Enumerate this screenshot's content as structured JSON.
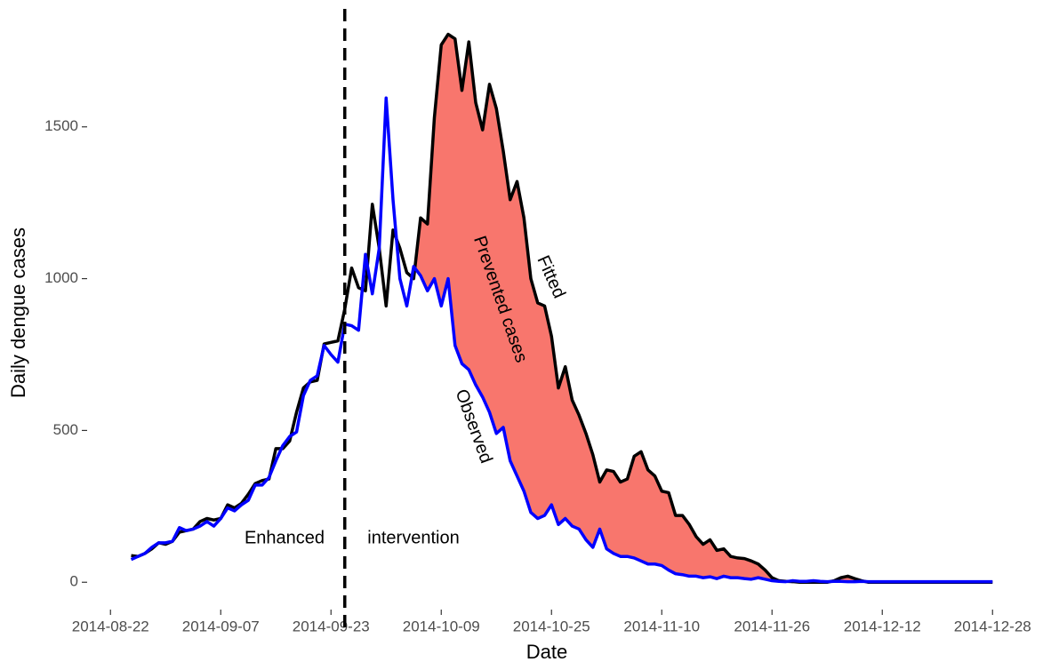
{
  "chart_data": {
    "type": "line",
    "x_label": "Date",
    "y_label": "Daily dengue cases",
    "x": [
      "2014-08-25",
      "2014-08-26",
      "2014-08-27",
      "2014-08-28",
      "2014-08-29",
      "2014-08-30",
      "2014-08-31",
      "2014-09-01",
      "2014-09-02",
      "2014-09-03",
      "2014-09-04",
      "2014-09-05",
      "2014-09-06",
      "2014-09-07",
      "2014-09-08",
      "2014-09-09",
      "2014-09-10",
      "2014-09-11",
      "2014-09-12",
      "2014-09-13",
      "2014-09-14",
      "2014-09-15",
      "2014-09-16",
      "2014-09-17",
      "2014-09-18",
      "2014-09-19",
      "2014-09-20",
      "2014-09-21",
      "2014-09-22",
      "2014-09-23",
      "2014-09-24",
      "2014-09-25",
      "2014-09-26",
      "2014-09-27",
      "2014-09-28",
      "2014-09-29",
      "2014-09-30",
      "2014-10-01",
      "2014-10-02",
      "2014-10-03",
      "2014-10-04",
      "2014-10-05",
      "2014-10-06",
      "2014-10-07",
      "2014-10-08",
      "2014-10-09",
      "2014-10-10",
      "2014-10-11",
      "2014-10-12",
      "2014-10-13",
      "2014-10-14",
      "2014-10-15",
      "2014-10-16",
      "2014-10-17",
      "2014-10-18",
      "2014-10-19",
      "2014-10-20",
      "2014-10-21",
      "2014-10-22",
      "2014-10-23",
      "2014-10-24",
      "2014-10-25",
      "2014-10-26",
      "2014-10-27",
      "2014-10-28",
      "2014-10-29",
      "2014-10-30",
      "2014-10-31",
      "2014-11-01",
      "2014-11-02",
      "2014-11-03",
      "2014-11-04",
      "2014-11-05",
      "2014-11-06",
      "2014-11-07",
      "2014-11-08",
      "2014-11-09",
      "2014-11-10",
      "2014-11-11",
      "2014-11-12",
      "2014-11-13",
      "2014-11-14",
      "2014-11-15",
      "2014-11-16",
      "2014-11-17",
      "2014-11-18",
      "2014-11-19",
      "2014-11-20",
      "2014-11-21",
      "2014-11-22",
      "2014-11-23",
      "2014-11-24",
      "2014-11-25",
      "2014-11-26",
      "2014-11-27",
      "2014-11-28",
      "2014-11-29",
      "2014-11-30",
      "2014-12-01",
      "2014-12-02",
      "2014-12-03",
      "2014-12-04",
      "2014-12-05",
      "2014-12-06",
      "2014-12-07",
      "2014-12-08",
      "2014-12-09",
      "2014-12-10",
      "2014-12-11",
      "2014-12-12",
      "2014-12-13",
      "2014-12-14",
      "2014-12-15",
      "2014-12-16",
      "2014-12-17",
      "2014-12-18",
      "2014-12-19",
      "2014-12-20",
      "2014-12-21",
      "2014-12-22",
      "2014-12-23",
      "2014-12-24",
      "2014-12-25",
      "2014-12-26",
      "2014-12-27",
      "2014-12-28"
    ],
    "series": [
      {
        "name": "Fitted",
        "color": "#000000",
        "values": [
          88,
          85,
          95,
          110,
          130,
          125,
          135,
          165,
          170,
          175,
          200,
          210,
          205,
          210,
          255,
          245,
          260,
          290,
          325,
          335,
          340,
          440,
          440,
          465,
          560,
          640,
          660,
          665,
          785,
          790,
          795,
          900,
          1035,
          970,
          960,
          1245,
          1100,
          910,
          1160,
          1100,
          1020,
          1000,
          1200,
          1180,
          1530,
          1770,
          1805,
          1790,
          1620,
          1780,
          1580,
          1490,
          1640,
          1560,
          1420,
          1260,
          1320,
          1200,
          1000,
          920,
          910,
          810,
          640,
          710,
          600,
          550,
          490,
          420,
          330,
          370,
          365,
          330,
          340,
          415,
          430,
          370,
          350,
          300,
          295,
          220,
          220,
          190,
          150,
          125,
          140,
          105,
          110,
          85,
          80,
          78,
          70,
          60,
          40,
          15,
          5,
          3,
          2,
          0,
          0,
          0,
          0,
          0,
          5,
          15,
          20,
          12,
          5,
          0,
          0,
          0,
          0,
          0,
          0,
          0,
          0,
          0,
          0,
          0,
          0,
          0,
          0,
          0,
          0,
          0,
          0,
          0
        ]
      },
      {
        "name": "Observed",
        "color": "#0000ff",
        "values": [
          75,
          85,
          95,
          115,
          130,
          130,
          135,
          180,
          170,
          175,
          185,
          200,
          185,
          210,
          245,
          235,
          255,
          270,
          320,
          320,
          345,
          400,
          450,
          480,
          495,
          615,
          665,
          680,
          780,
          750,
          725,
          850,
          845,
          830,
          1080,
          950,
          1100,
          1595,
          1260,
          1000,
          910,
          1040,
          1010,
          960,
          1000,
          910,
          1000,
          780,
          720,
          700,
          650,
          610,
          560,
          490,
          510,
          400,
          350,
          300,
          230,
          210,
          220,
          255,
          190,
          210,
          185,
          175,
          140,
          115,
          175,
          110,
          95,
          85,
          85,
          80,
          70,
          60,
          60,
          55,
          40,
          28,
          25,
          20,
          20,
          15,
          18,
          12,
          20,
          15,
          15,
          12,
          10,
          15,
          10,
          5,
          3,
          2,
          5,
          3,
          3,
          5,
          3,
          2,
          3,
          3,
          2,
          2,
          3,
          2,
          2,
          2,
          2,
          2,
          2,
          2,
          2,
          2,
          2,
          2,
          2,
          2,
          2,
          2,
          2,
          2,
          2,
          2
        ]
      }
    ],
    "fill_color": "#f8766d",
    "vline": "2014-09-25",
    "annotations": [
      "Enhanced",
      "intervention",
      "Prevented cases",
      "Fitted",
      "Observed"
    ],
    "xlim": [
      "2014-08-15",
      "2015-01-02"
    ],
    "xticks": [
      "2014-08-22",
      "2014-09-07",
      "2014-09-23",
      "2014-10-09",
      "2014-10-25",
      "2014-11-10",
      "2014-11-26",
      "2014-12-12",
      "2014-12-28"
    ],
    "ylim": [
      -90,
      1830
    ],
    "yticks": [
      0,
      500,
      1000,
      1500
    ],
    "grid": false
  }
}
